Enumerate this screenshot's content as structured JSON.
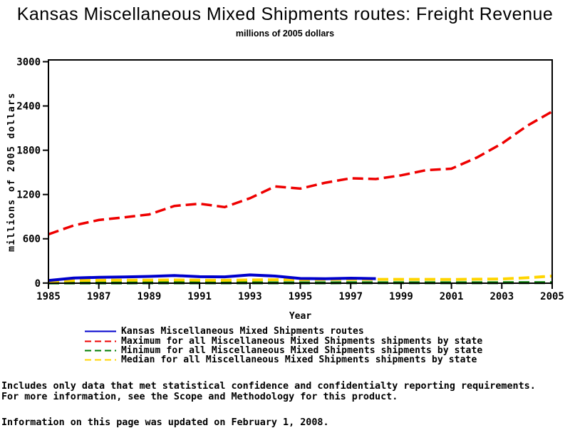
{
  "title": "Kansas Miscellaneous Mixed Shipments routes: Freight Revenue",
  "subtitle": "millions of 2005 dollars",
  "chart_data": {
    "type": "line",
    "title": "Kansas Miscellaneous Mixed Shipments routes: Freight Revenue",
    "subtitle": "millions of 2005 dollars",
    "xlabel": "Year",
    "ylabel": "millions of 2005 dollars",
    "xlim": [
      1985,
      2005
    ],
    "ylim": [
      0,
      3000
    ],
    "x_ticks": [
      1985,
      1987,
      1989,
      1991,
      1993,
      1995,
      1997,
      1999,
      2001,
      2003,
      2005
    ],
    "y_ticks": [
      0,
      600,
      1200,
      1800,
      2400,
      3000
    ],
    "grid": false,
    "legend_position": "bottom",
    "series": [
      {
        "id": "kansas",
        "name": "Kansas Miscellaneous Mixed Shipments routes",
        "color": "#0000CC",
        "line_style": "solid",
        "x": [
          1985,
          1986,
          1987,
          1988,
          1989,
          1990,
          1991,
          1992,
          1993,
          1994,
          1995,
          1996,
          1997,
          1998
        ],
        "values": [
          35,
          68,
          78,
          82,
          90,
          102,
          86,
          84,
          110,
          95,
          62,
          58,
          66,
          60
        ]
      },
      {
        "id": "maximum",
        "name": "Maximum for all Miscellaneous Mixed Shipments shipments by state",
        "color": "#EE0000",
        "line_style": "dashed",
        "x": [
          1985,
          1986,
          1987,
          1988,
          1989,
          1990,
          1991,
          1992,
          1993,
          1994,
          1995,
          1996,
          1997,
          1998,
          1999,
          2000,
          2001,
          2002,
          2003,
          2004,
          2005
        ],
        "values": [
          660,
          780,
          855,
          890,
          930,
          1045,
          1075,
          1030,
          1150,
          1310,
          1280,
          1360,
          1420,
          1410,
          1460,
          1530,
          1550,
          1700,
          1890,
          2130,
          2325
        ]
      },
      {
        "id": "minimum",
        "name": "Minimum for all Miscellaneous Mixed Shipments shipments by state",
        "color": "#007D00",
        "line_style": "dashed",
        "x": [
          1985,
          1986,
          1987,
          1988,
          1989,
          1990,
          1991,
          1992,
          1993,
          1994,
          1995,
          1996,
          1997,
          1998,
          1999,
          2000,
          2001,
          2002,
          2003,
          2004,
          2005
        ],
        "values": [
          2,
          2,
          2,
          2,
          3,
          3,
          3,
          3,
          3,
          3,
          3,
          3,
          4,
          4,
          4,
          4,
          4,
          4,
          5,
          5,
          6
        ]
      },
      {
        "id": "median",
        "name": "Median for all Miscellaneous Mixed Shipments shipments by state",
        "color": "#FFD500",
        "line_style": "dashed",
        "x": [
          1985,
          1986,
          1987,
          1988,
          1989,
          1990,
          1991,
          1992,
          1993,
          1994,
          1995,
          1996,
          1997,
          1998,
          1999,
          2000,
          2001,
          2002,
          2003,
          2004,
          2005
        ],
        "values": [
          25,
          35,
          38,
          40,
          40,
          42,
          40,
          38,
          42,
          45,
          45,
          48,
          50,
          50,
          50,
          50,
          48,
          52,
          55,
          72,
          95
        ]
      }
    ]
  },
  "footnotes": {
    "line1": "Includes only data that met statistical confidence and confidentialty reporting requirements.",
    "line2": "For more information, see the Scope and Methodology for this product.",
    "updated": "Information on this page was updated on February 1, 2008."
  }
}
